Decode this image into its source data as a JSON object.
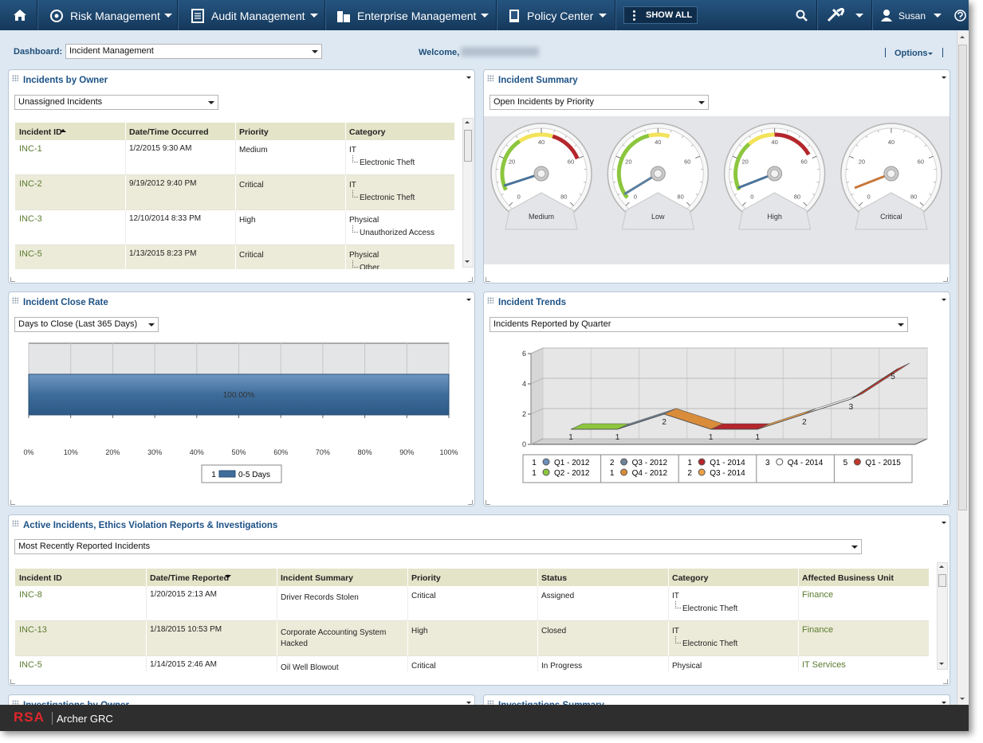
{
  "nav": {
    "items": [
      "Risk Management",
      "Audit Management",
      "Enterprise Management",
      "Policy Center"
    ],
    "show_all": "SHOW ALL",
    "user": "Susan"
  },
  "toolbar": {
    "dashboard_label": "Dashboard:",
    "dashboard": "Incident Management",
    "welcome": "Welcome,",
    "options": "Options"
  },
  "owner": {
    "title": "Incidents by Owner",
    "filter": "Unassigned Incidents",
    "columns": [
      "Incident ID",
      "Date/Time Occurred",
      "Priority",
      "Category"
    ],
    "rows": [
      {
        "id": "INC-1",
        "date": "1/2/2015 9:30 AM",
        "priority": "Medium",
        "category": "IT",
        "subcategory": "Electronic Theft"
      },
      {
        "id": "INC-2",
        "date": "9/19/2012 9:40 PM",
        "priority": "Critical",
        "category": "IT",
        "subcategory": "Electronic Theft"
      },
      {
        "id": "INC-3",
        "date": "12/10/2014 8:33 PM",
        "priority": "High",
        "category": "Physical",
        "subcategory": "Unauthorized Access"
      },
      {
        "id": "INC-5",
        "date": "1/13/2015 8:23 PM",
        "priority": "Critical",
        "category": "Physical",
        "subcategory": "Other"
      }
    ]
  },
  "summary": {
    "title": "Incident Summary",
    "filter": "Open Incidents by Priority",
    "chart": {
      "type": "gauge",
      "ylim": [
        0,
        80
      ],
      "yticks": [
        0,
        20,
        40,
        60,
        80
      ],
      "gauges": [
        {
          "label": "Medium",
          "value": 8,
          "needle_color": "#4a7399",
          "bands": [
            {
              "from": 6,
              "to": 30,
              "color": "#8cc63f"
            },
            {
              "from": 30,
              "to": 45,
              "color": "#f2e35a"
            },
            {
              "from": 45,
              "to": 60,
              "color": "#b3272d"
            }
          ]
        },
        {
          "label": "Low",
          "value": 4,
          "needle_color": "#5d7f9e",
          "bands": [
            {
              "from": 2,
              "to": 36,
              "color": "#8cc63f"
            },
            {
              "from": 36,
              "to": 45,
              "color": "#f2e35a"
            }
          ]
        },
        {
          "label": "High",
          "value": 7,
          "needle_color": "#4a7399",
          "bands": [
            {
              "from": 6,
              "to": 28,
              "color": "#8cc63f"
            },
            {
              "from": 28,
              "to": 40,
              "color": "#f2e35a"
            },
            {
              "from": 40,
              "to": 58,
              "color": "#b3272d"
            }
          ]
        },
        {
          "label": "Critical",
          "value": 7,
          "needle_color": "#c8773a",
          "bands": []
        }
      ]
    }
  },
  "close_rate": {
    "title": "Incident Close Rate",
    "filter": "Days to Close (Last 365 Days)",
    "chart": {
      "type": "bar",
      "orientation": "horizontal",
      "values": [
        100
      ],
      "value_labels": [
        "100.00%"
      ],
      "series_name": "0-5 Days",
      "legend_count": 1,
      "color": "#3e6d9b",
      "xlim": [
        0,
        100
      ],
      "xticks": [
        {
          "value": 0,
          "label": "0%"
        },
        {
          "value": 10,
          "label": "10%"
        },
        {
          "value": 20,
          "label": "20%"
        },
        {
          "value": 30,
          "label": "30%"
        },
        {
          "value": 40,
          "label": "40%"
        },
        {
          "value": 50,
          "label": "50%"
        },
        {
          "value": 60,
          "label": "60%"
        },
        {
          "value": 70,
          "label": "70%"
        },
        {
          "value": 80,
          "label": "80%"
        },
        {
          "value": 90,
          "label": "90%"
        },
        {
          "value": 100,
          "label": "100%"
        }
      ]
    }
  },
  "trends": {
    "title": "Incident Trends",
    "filter": "Incidents Reported by Quarter",
    "chart": {
      "type": "line",
      "categories": [
        "Q1 - 2012",
        "Q2 - 2012",
        "Q3 - 2012",
        "Q4 - 2012",
        "Q1 - 2014",
        "Q3 - 2014",
        "Q4 - 2014",
        "Q1 - 2015"
      ],
      "values": [
        1,
        1,
        2,
        1,
        1,
        2,
        3,
        5
      ],
      "colors": [
        "#6c8fb8",
        "#8cc63f",
        "#6f8399",
        "#d98c3a",
        "#b3272d",
        "#eba04a",
        "#ffffff",
        "#c0392b"
      ],
      "ylim": [
        0,
        6
      ],
      "yticks": [
        0,
        2,
        4,
        6
      ]
    }
  },
  "active": {
    "title": "Active Incidents, Ethics Violation Reports & Investigations",
    "filter": "Most Recently Reported Incidents",
    "columns": [
      "Incident ID",
      "Date/Time Reported",
      "Incident Summary",
      "Priority",
      "Status",
      "Category",
      "Affected Business Unit"
    ],
    "rows": [
      {
        "id": "INC-8",
        "date": "1/20/2015 2:13 AM",
        "summary": "Driver Records Stolen",
        "priority": "Critical",
        "status": "Assigned",
        "category": "IT",
        "subcategory": "Electronic Theft",
        "unit": "Finance"
      },
      {
        "id": "INC-13",
        "date": "1/18/2015 10:53 PM",
        "summary": "Corporate Accounting System Hacked",
        "priority": "High",
        "status": "Closed",
        "category": "IT",
        "subcategory": "Electronic Theft",
        "unit": "Finance"
      },
      {
        "id": "INC-5",
        "date": "1/14/2015 2:46 AM",
        "summary": "Oil Well Blowout",
        "priority": "Critical",
        "status": "In Progress",
        "category": "Physical",
        "unit": "IT Services"
      }
    ]
  },
  "bottom_panels": [
    "Investigations by Owner",
    "Investigations Summary"
  ],
  "footer": {
    "brand": "RSA",
    "product": "Archer GRC"
  }
}
